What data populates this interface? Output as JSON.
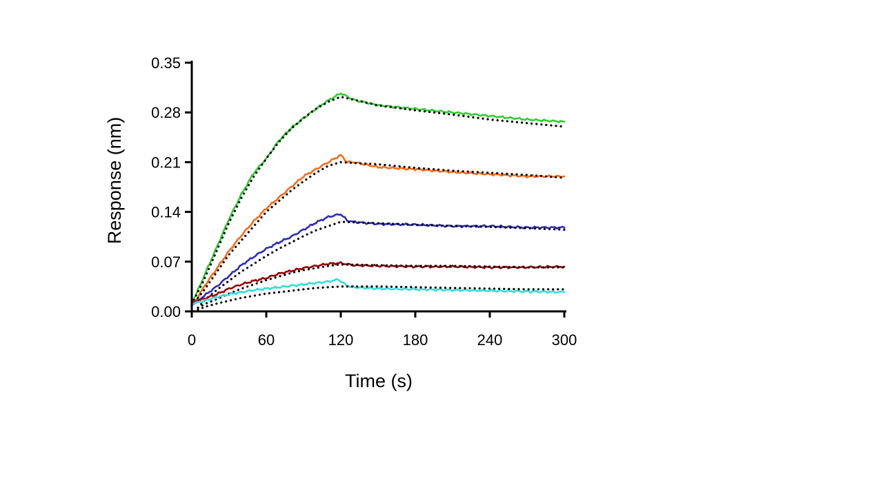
{
  "chart_data": {
    "type": "line",
    "title": "",
    "xlabel": "Time (s)",
    "ylabel": "Response (nm)",
    "xlim": [
      0,
      300
    ],
    "ylim": [
      0,
      0.35
    ],
    "xticks": [
      0,
      60,
      120,
      180,
      240,
      300
    ],
    "xtick_labels": [
      "0",
      "60",
      "120",
      "180",
      "240",
      "300"
    ],
    "yticks": [
      0,
      0.07,
      0.14,
      0.21,
      0.28,
      0.35
    ],
    "ytick_labels": [
      "0.00",
      "0.07",
      "0.14",
      "0.21",
      "0.28",
      "0.35"
    ],
    "grid": false,
    "legend": "none",
    "association_end": 120,
    "series": [
      {
        "color": "#33cc33",
        "style": "solid",
        "points": [
          [
            0,
            0.012
          ],
          [
            5,
            0.03
          ],
          [
            10,
            0.05
          ],
          [
            20,
            0.09
          ],
          [
            30,
            0.13
          ],
          [
            40,
            0.165
          ],
          [
            50,
            0.195
          ],
          [
            60,
            0.215
          ],
          [
            70,
            0.24
          ],
          [
            80,
            0.258
          ],
          [
            90,
            0.272
          ],
          [
            100,
            0.285
          ],
          [
            110,
            0.297
          ],
          [
            120,
            0.307
          ],
          [
            130,
            0.298
          ],
          [
            150,
            0.29
          ],
          [
            180,
            0.285
          ],
          [
            210,
            0.28
          ],
          [
            240,
            0.275
          ],
          [
            270,
            0.27
          ],
          [
            300,
            0.267
          ]
        ]
      },
      {
        "color": "#000000",
        "style": "dotted",
        "points": [
          [
            0,
            0.01
          ],
          [
            10,
            0.045
          ],
          [
            20,
            0.085
          ],
          [
            30,
            0.125
          ],
          [
            40,
            0.16
          ],
          [
            50,
            0.19
          ],
          [
            60,
            0.215
          ],
          [
            70,
            0.238
          ],
          [
            80,
            0.257
          ],
          [
            90,
            0.272
          ],
          [
            100,
            0.285
          ],
          [
            110,
            0.295
          ],
          [
            120,
            0.302
          ],
          [
            150,
            0.29
          ],
          [
            180,
            0.283
          ],
          [
            210,
            0.277
          ],
          [
            240,
            0.27
          ],
          [
            270,
            0.265
          ],
          [
            300,
            0.26
          ]
        ]
      },
      {
        "color": "#ff6a13",
        "style": "solid",
        "points": [
          [
            0,
            0.008
          ],
          [
            5,
            0.02
          ],
          [
            10,
            0.035
          ],
          [
            20,
            0.06
          ],
          [
            30,
            0.085
          ],
          [
            40,
            0.107
          ],
          [
            50,
            0.127
          ],
          [
            60,
            0.145
          ],
          [
            70,
            0.16
          ],
          [
            80,
            0.175
          ],
          [
            90,
            0.19
          ],
          [
            100,
            0.2
          ],
          [
            110,
            0.21
          ],
          [
            120,
            0.22
          ],
          [
            125,
            0.21
          ],
          [
            130,
            0.21
          ],
          [
            150,
            0.203
          ],
          [
            180,
            0.2
          ],
          [
            210,
            0.196
          ],
          [
            240,
            0.193
          ],
          [
            270,
            0.19
          ],
          [
            300,
            0.19
          ]
        ]
      },
      {
        "color": "#000000",
        "style": "dotted",
        "points": [
          [
            0,
            0.008
          ],
          [
            10,
            0.03
          ],
          [
            20,
            0.055
          ],
          [
            30,
            0.08
          ],
          [
            40,
            0.1
          ],
          [
            50,
            0.12
          ],
          [
            60,
            0.14
          ],
          [
            70,
            0.155
          ],
          [
            80,
            0.17
          ],
          [
            90,
            0.183
          ],
          [
            100,
            0.195
          ],
          [
            110,
            0.205
          ],
          [
            120,
            0.21
          ],
          [
            150,
            0.207
          ],
          [
            180,
            0.202
          ],
          [
            210,
            0.198
          ],
          [
            240,
            0.195
          ],
          [
            270,
            0.192
          ],
          [
            300,
            0.188
          ]
        ]
      },
      {
        "color": "#2b2bbb",
        "style": "solid",
        "points": [
          [
            0,
            0.01
          ],
          [
            5,
            0.015
          ],
          [
            10,
            0.022
          ],
          [
            20,
            0.035
          ],
          [
            30,
            0.05
          ],
          [
            40,
            0.065
          ],
          [
            50,
            0.077
          ],
          [
            60,
            0.088
          ],
          [
            70,
            0.097
          ],
          [
            80,
            0.105
          ],
          [
            90,
            0.115
          ],
          [
            100,
            0.125
          ],
          [
            110,
            0.133
          ],
          [
            120,
            0.137
          ],
          [
            125,
            0.128
          ],
          [
            130,
            0.126
          ],
          [
            150,
            0.123
          ],
          [
            180,
            0.122
          ],
          [
            210,
            0.12
          ],
          [
            240,
            0.12
          ],
          [
            270,
            0.118
          ],
          [
            300,
            0.118
          ]
        ]
      },
      {
        "color": "#000000",
        "style": "dotted",
        "points": [
          [
            5,
            0.005
          ],
          [
            10,
            0.015
          ],
          [
            20,
            0.03
          ],
          [
            30,
            0.043
          ],
          [
            40,
            0.056
          ],
          [
            50,
            0.067
          ],
          [
            60,
            0.078
          ],
          [
            70,
            0.088
          ],
          [
            80,
            0.097
          ],
          [
            90,
            0.106
          ],
          [
            100,
            0.114
          ],
          [
            110,
            0.12
          ],
          [
            120,
            0.126
          ],
          [
            150,
            0.124
          ],
          [
            180,
            0.122
          ],
          [
            210,
            0.12
          ],
          [
            240,
            0.119
          ],
          [
            270,
            0.117
          ],
          [
            300,
            0.115
          ]
        ]
      },
      {
        "color": "#990000",
        "style": "solid",
        "points": [
          [
            0,
            0.01
          ],
          [
            5,
            0.015
          ],
          [
            10,
            0.018
          ],
          [
            20,
            0.024
          ],
          [
            30,
            0.032
          ],
          [
            40,
            0.038
          ],
          [
            50,
            0.043
          ],
          [
            60,
            0.047
          ],
          [
            70,
            0.053
          ],
          [
            80,
            0.057
          ],
          [
            90,
            0.061
          ],
          [
            100,
            0.064
          ],
          [
            110,
            0.067
          ],
          [
            120,
            0.068
          ],
          [
            130,
            0.065
          ],
          [
            150,
            0.064
          ],
          [
            180,
            0.063
          ],
          [
            210,
            0.063
          ],
          [
            240,
            0.062
          ],
          [
            270,
            0.062
          ],
          [
            300,
            0.063
          ]
        ]
      },
      {
        "color": "#000000",
        "style": "dotted",
        "points": [
          [
            5,
            0.005
          ],
          [
            10,
            0.01
          ],
          [
            20,
            0.017
          ],
          [
            30,
            0.025
          ],
          [
            40,
            0.032
          ],
          [
            50,
            0.038
          ],
          [
            60,
            0.044
          ],
          [
            70,
            0.049
          ],
          [
            80,
            0.054
          ],
          [
            90,
            0.058
          ],
          [
            100,
            0.061
          ],
          [
            110,
            0.064
          ],
          [
            120,
            0.066
          ],
          [
            150,
            0.065
          ],
          [
            180,
            0.064
          ],
          [
            210,
            0.064
          ],
          [
            240,
            0.063
          ],
          [
            270,
            0.062
          ],
          [
            300,
            0.062
          ]
        ]
      },
      {
        "color": "#33dddd",
        "style": "solid",
        "points": [
          [
            0,
            0.01
          ],
          [
            5,
            0.013
          ],
          [
            10,
            0.015
          ],
          [
            20,
            0.02
          ],
          [
            30,
            0.024
          ],
          [
            40,
            0.027
          ],
          [
            50,
            0.03
          ],
          [
            60,
            0.032
          ],
          [
            70,
            0.034
          ],
          [
            80,
            0.036
          ],
          [
            90,
            0.038
          ],
          [
            100,
            0.04
          ],
          [
            110,
            0.042
          ],
          [
            118,
            0.045
          ],
          [
            125,
            0.036
          ],
          [
            130,
            0.034
          ],
          [
            150,
            0.032
          ],
          [
            180,
            0.031
          ],
          [
            210,
            0.03
          ],
          [
            240,
            0.029
          ],
          [
            270,
            0.028
          ],
          [
            300,
            0.027
          ]
        ]
      },
      {
        "color": "#000000",
        "style": "dotted",
        "points": [
          [
            5,
            0.002
          ],
          [
            10,
            0.006
          ],
          [
            20,
            0.011
          ],
          [
            30,
            0.015
          ],
          [
            40,
            0.019
          ],
          [
            50,
            0.022
          ],
          [
            60,
            0.025
          ],
          [
            70,
            0.027
          ],
          [
            80,
            0.029
          ],
          [
            90,
            0.031
          ],
          [
            100,
            0.033
          ],
          [
            110,
            0.034
          ],
          [
            120,
            0.035
          ],
          [
            150,
            0.035
          ],
          [
            180,
            0.034
          ],
          [
            210,
            0.033
          ],
          [
            240,
            0.032
          ],
          [
            270,
            0.031
          ],
          [
            300,
            0.031
          ]
        ]
      }
    ]
  }
}
